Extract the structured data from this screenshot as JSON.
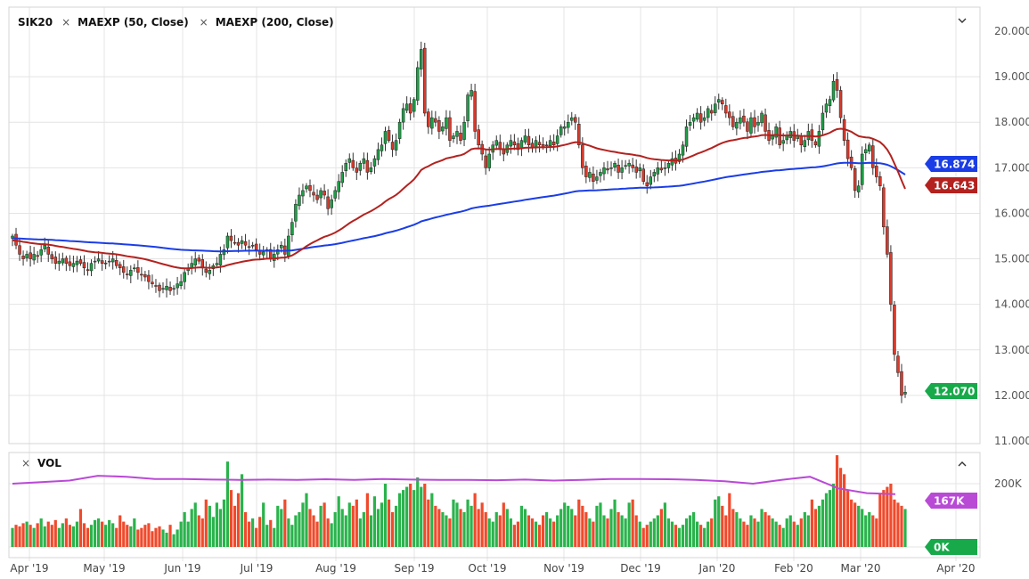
{
  "header": {
    "symbol": "SIK20",
    "studies": [
      "MAEXP (50, Close)",
      "MAEXP (200, Close)"
    ],
    "volume_label": "VOL"
  },
  "colors": {
    "up": "#1e9e46",
    "down": "#d9392b",
    "ma50": "#b3221f",
    "ma200": "#1a3de6",
    "vol_up": "#2ab34c",
    "vol_down": "#f04a2c",
    "vol_ma": "#b94ad6",
    "price_tag": "#17a94a"
  },
  "chart_data": {
    "type": "candlestick",
    "price_axis": {
      "min": 11,
      "max": 20,
      "ticks": [
        "20.000",
        "19.000",
        "18.000",
        "17.000",
        "16.000",
        "15.000",
        "14.000",
        "13.000",
        "12.000",
        "11.000"
      ]
    },
    "volume_axis": {
      "ticks": [
        "200K"
      ]
    },
    "x_ticks": [
      "Apr '19",
      "May '19",
      "Jun '19",
      "Jul '19",
      "Aug '19",
      "Sep '19",
      "Oct '19",
      "Nov '19",
      "Dec '19",
      "Jan '20",
      "Feb '20",
      "Mar '20",
      "Apr '20"
    ],
    "tags": {
      "ma200": "16.874",
      "ma50": "16.643",
      "last": "12.070",
      "vol_ma": "167K",
      "vol_zero": "0K"
    },
    "closes": [
      15.5,
      15.3,
      15.1,
      15.0,
      15.1,
      15.0,
      15.1,
      15.05,
      15.2,
      15.3,
      15.1,
      15.0,
      14.9,
      14.95,
      15.0,
      14.9,
      14.85,
      14.9,
      14.95,
      14.9,
      14.8,
      14.75,
      14.9,
      14.95,
      15.0,
      14.9,
      14.9,
      14.95,
      15.0,
      14.85,
      14.8,
      14.7,
      14.65,
      14.75,
      14.8,
      14.7,
      14.65,
      14.6,
      14.5,
      14.45,
      14.4,
      14.3,
      14.35,
      14.4,
      14.3,
      14.35,
      14.45,
      14.5,
      14.7,
      14.8,
      14.9,
      15.0,
      14.95,
      14.8,
      14.7,
      14.75,
      14.85,
      14.9,
      15.1,
      15.2,
      15.5,
      15.4,
      15.35,
      15.3,
      15.4,
      15.3,
      15.25,
      15.3,
      15.2,
      15.1,
      15.15,
      15.2,
      15.0,
      15.1,
      15.2,
      15.3,
      15.1,
      15.5,
      15.8,
      16.2,
      16.4,
      16.5,
      16.6,
      16.5,
      16.4,
      16.3,
      16.5,
      16.4,
      16.1,
      16.3,
      16.5,
      16.7,
      16.9,
      17.1,
      17.2,
      17.0,
      16.9,
      17.1,
      17.2,
      16.9,
      17.0,
      17.2,
      17.4,
      17.5,
      17.8,
      17.6,
      17.4,
      17.6,
      18.0,
      18.3,
      18.4,
      18.2,
      18.5,
      19.2,
      19.6,
      18.2,
      17.9,
      18.1,
      18.0,
      17.8,
      17.9,
      18.1,
      17.6,
      17.7,
      17.8,
      17.6,
      18.0,
      18.6,
      18.7,
      17.8,
      17.5,
      17.3,
      17.0,
      17.3,
      17.5,
      17.6,
      17.4,
      17.3,
      17.5,
      17.6,
      17.5,
      17.4,
      17.6,
      17.7,
      17.5,
      17.45,
      17.6,
      17.5,
      17.45,
      17.5,
      17.6,
      17.5,
      17.7,
      17.9,
      17.9,
      18.0,
      18.1,
      18.0,
      17.5,
      17.0,
      16.8,
      16.9,
      16.7,
      16.8,
      16.9,
      17.0,
      16.95,
      17.0,
      17.1,
      16.9,
      17.0,
      17.05,
      17.1,
      17.0,
      16.9,
      17.0,
      16.7,
      16.6,
      16.8,
      16.9,
      17.0,
      16.95,
      17.0,
      17.1,
      17.2,
      17.1,
      17.3,
      17.5,
      17.9,
      18.0,
      18.1,
      18.2,
      18.0,
      18.1,
      18.3,
      18.2,
      18.4,
      18.5,
      18.4,
      18.2,
      18.1,
      17.9,
      18.0,
      18.1,
      18.0,
      17.8,
      18.1,
      17.9,
      18.0,
      18.2,
      17.8,
      17.6,
      17.7,
      17.9,
      17.5,
      17.6,
      17.7,
      17.8,
      17.6,
      17.7,
      17.5,
      17.6,
      17.8,
      17.6,
      17.5,
      17.8,
      18.2,
      18.4,
      18.5,
      18.9,
      18.7,
      18.1,
      17.6,
      17.2,
      17.0,
      16.5,
      16.6,
      17.3,
      17.4,
      17.5,
      17.0,
      16.8,
      16.6,
      15.7,
      15.1,
      14.0,
      12.9,
      12.5,
      12.0,
      12.07
    ],
    "volumes_k": [
      60,
      70,
      65,
      75,
      80,
      70,
      60,
      75,
      90,
      65,
      80,
      70,
      85,
      60,
      75,
      90,
      70,
      65,
      80,
      120,
      75,
      60,
      70,
      85,
      90,
      80,
      70,
      85,
      75,
      60,
      100,
      80,
      70,
      65,
      90,
      55,
      60,
      70,
      75,
      50,
      60,
      65,
      55,
      45,
      70,
      40,
      55,
      80,
      110,
      80,
      120,
      140,
      100,
      90,
      150,
      130,
      95,
      140,
      120,
      150,
      270,
      180,
      130,
      170,
      230,
      110,
      80,
      90,
      60,
      95,
      140,
      70,
      85,
      60,
      130,
      120,
      150,
      90,
      70,
      100,
      110,
      140,
      170,
      120,
      100,
      80,
      130,
      140,
      90,
      75,
      110,
      160,
      120,
      100,
      140,
      130,
      150,
      90,
      110,
      170,
      100,
      160,
      120,
      140,
      200,
      150,
      110,
      130,
      170,
      180,
      190,
      200,
      180,
      220,
      190,
      200,
      150,
      170,
      130,
      120,
      110,
      100,
      90,
      150,
      140,
      120,
      110,
      150,
      130,
      170,
      120,
      140,
      110,
      90,
      80,
      110,
      100,
      140,
      120,
      90,
      70,
      80,
      130,
      120,
      100,
      90,
      80,
      70,
      100,
      110,
      90,
      80,
      100,
      120,
      140,
      130,
      120,
      100,
      150,
      130,
      110,
      90,
      80,
      130,
      140,
      100,
      90,
      120,
      150,
      110,
      100,
      90,
      140,
      150,
      100,
      80,
      60,
      70,
      80,
      90,
      100,
      120,
      140,
      90,
      80,
      70,
      60,
      70,
      90,
      100,
      110,
      80,
      70,
      60,
      80,
      90,
      150,
      160,
      130,
      100,
      170,
      120,
      110,
      90,
      80,
      70,
      100,
      90,
      80,
      120,
      110,
      100,
      90,
      80,
      70,
      60,
      90,
      100,
      80,
      70,
      90,
      110,
      100,
      150,
      120,
      130,
      150,
      170,
      180,
      200,
      290,
      250,
      230,
      180,
      150,
      140,
      130,
      120,
      100,
      110,
      100,
      90,
      170,
      180,
      190,
      200,
      150,
      140,
      130,
      120
    ],
    "vol_ma_k": [
      200,
      205,
      210,
      225,
      222,
      215,
      215,
      213,
      212,
      213,
      212,
      214,
      212,
      215,
      213,
      212,
      212,
      211,
      213,
      210,
      212,
      215,
      215,
      214,
      212,
      208,
      200,
      212,
      222,
      185,
      170,
      167
    ]
  }
}
